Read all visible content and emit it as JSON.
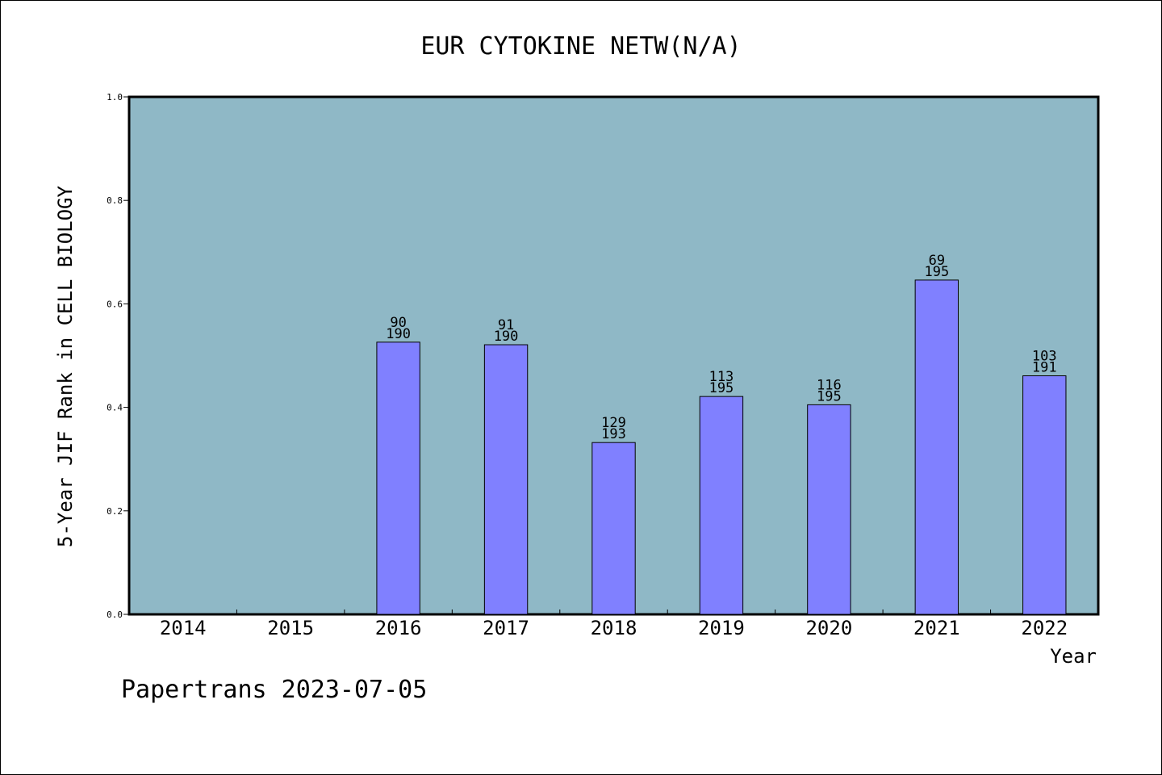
{
  "chart_data": {
    "type": "bar",
    "title": "EUR CYTOKINE NETW(N/A)",
    "xlabel": "Year",
    "ylabel": "5-Year JIF Rank in CELL BIOLOGY",
    "categories": [
      "2014",
      "2015",
      "2016",
      "2017",
      "2018",
      "2019",
      "2020",
      "2021",
      "2022"
    ],
    "values": [
      null,
      null,
      0.526,
      0.521,
      0.332,
      0.421,
      0.405,
      0.646,
      0.461
    ],
    "rank_labels": [
      "",
      "",
      "90",
      "91",
      "129",
      "113",
      "116",
      "69",
      "103"
    ],
    "total_labels": [
      "",
      "",
      "190",
      "190",
      "193",
      "195",
      "195",
      "195",
      "191"
    ],
    "yticks": [
      "0.0",
      "0.2",
      "0.4",
      "0.6",
      "0.8",
      "1.0"
    ],
    "ylim": [
      0,
      1.0
    ],
    "grid": false,
    "colors": {
      "plot_bg": "#8fb8c6",
      "bar": "#8080ff",
      "bar_edge": "#000000"
    }
  },
  "footer": {
    "credit": "Papertrans 2023-07-05"
  }
}
